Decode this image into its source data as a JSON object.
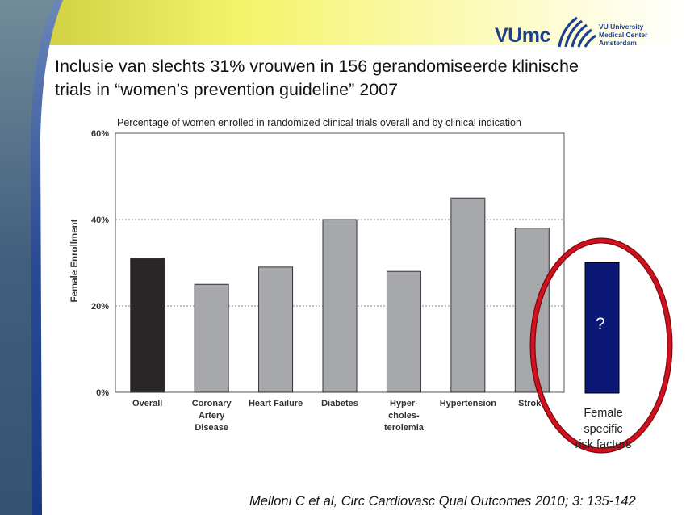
{
  "logo": {
    "mark": "VUmc",
    "lines": [
      "VU University",
      "Medical Center",
      "Amsterdam"
    ]
  },
  "title_lines": [
    "Inclusie van slechts 31% vrouwen in 156 gerandomiseerde klinische",
    "trials in “women’s prevention guideline” 2007"
  ],
  "colors": {
    "overall_bar": "#2a2527",
    "category_bar": "#a7a8ac",
    "extra_bar": "#0c1876",
    "ellipse": "#d2111f",
    "title_band": "#f5f36a",
    "side_band": "#1d3f8f"
  },
  "chart_data": {
    "type": "bar",
    "title": "Percentage of women enrolled in randomized clinical trials overall and by clinical indication",
    "ylabel": "Female Enrollment",
    "xlabel": "",
    "ylim": [
      0,
      60
    ],
    "yticks": [
      "0%",
      "20%",
      "40%",
      "60%"
    ],
    "grid": true,
    "categories": [
      [
        "Overall"
      ],
      [
        "Coronary",
        "Artery",
        "Disease"
      ],
      [
        "Heart Failure"
      ],
      [
        "Diabetes"
      ],
      [
        "Hyper-",
        "choles-",
        "terolemia"
      ],
      [
        "Hypertension"
      ],
      [
        "Stroke"
      ]
    ],
    "values": [
      31,
      25,
      29,
      40,
      28,
      45,
      38
    ],
    "annotation": {
      "value": 30,
      "label": "?",
      "caption_lines": [
        "Female",
        "specific",
        "risk factors"
      ]
    }
  },
  "citation": "Melloni C et al, Circ Cardiovasc Qual Outcomes 2010; 3: 135-142"
}
